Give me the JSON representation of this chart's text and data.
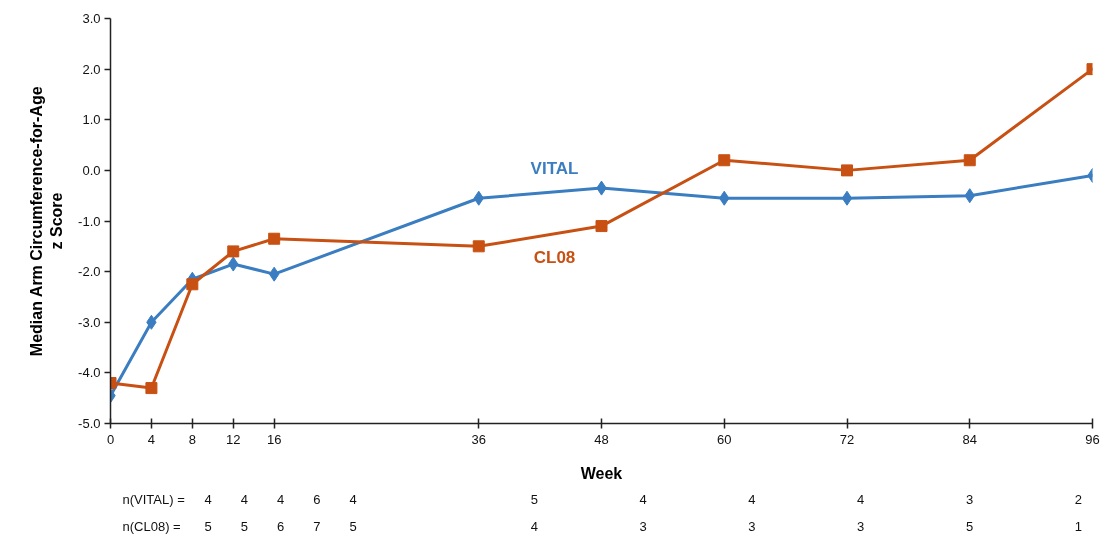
{
  "chart_data": {
    "type": "line",
    "xlabel": "Week",
    "ylabel": "Median Arm Circumference-for-Age\nz Score",
    "x": [
      0,
      4,
      8,
      12,
      16,
      36,
      48,
      60,
      72,
      84,
      96
    ],
    "xlim": [
      0,
      96
    ],
    "xticks": [
      0,
      4,
      8,
      12,
      16,
      36,
      48,
      60,
      72,
      84,
      96
    ],
    "ylim": [
      -5,
      3
    ],
    "yticks": [
      {
        "value": -5,
        "label": "-5.0"
      },
      {
        "value": -4,
        "label": "-4.0"
      },
      {
        "value": -3,
        "label": "-3.0"
      },
      {
        "value": -2,
        "label": "-2.0"
      },
      {
        "value": -1,
        "label": "-1.0"
      },
      {
        "value": 0,
        "label": "0.0"
      },
      {
        "value": 1,
        "label": "1.0"
      },
      {
        "value": 2,
        "label": "2.0"
      },
      {
        "value": 3,
        "label": "3.0"
      }
    ],
    "series": [
      {
        "name": "VITAL",
        "color": "#3a7dc1",
        "marker": "diamond",
        "values": [
          -4.45,
          -3.0,
          -2.15,
          -1.85,
          -2.05,
          -0.55,
          -0.35,
          -0.55,
          -0.55,
          -0.5,
          -0.1
        ]
      },
      {
        "name": "CL08",
        "color": "#c85012",
        "marker": "square",
        "values": [
          -4.2,
          -4.3,
          -2.25,
          -1.6,
          -1.35,
          -1.5,
          -1.1,
          0.2,
          0.0,
          0.2,
          2.0
        ]
      }
    ],
    "annotations": [
      "n(VITAL) =",
      "4",
      "4",
      "4",
      "6",
      "4",
      "5",
      "4",
      "4",
      "4",
      "3",
      "2",
      "n(CL08) =",
      "5",
      "5",
      "6",
      "7",
      "5",
      "4",
      "3",
      "3",
      "3",
      "5",
      "1"
    ]
  }
}
